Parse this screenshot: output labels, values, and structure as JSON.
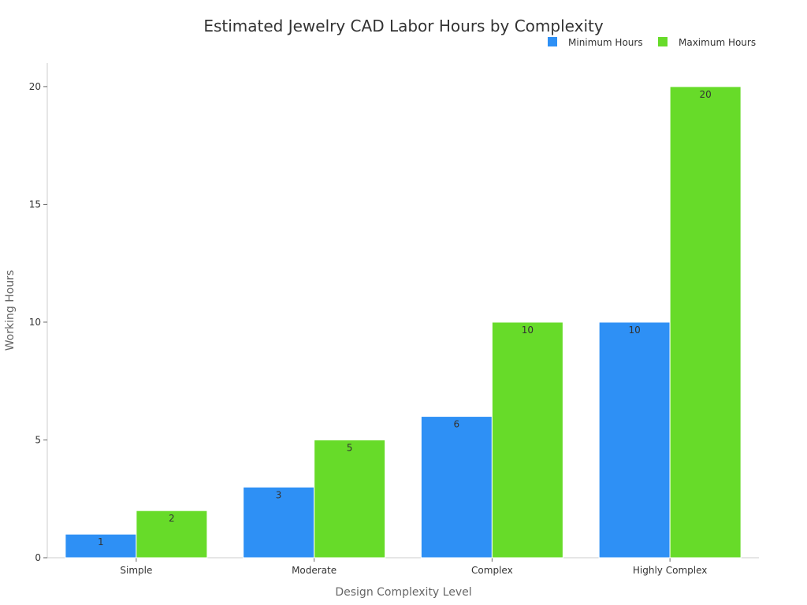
{
  "chart_data": {
    "type": "bar",
    "title": "Estimated Jewelry CAD Labor Hours by Complexity",
    "xlabel": "Design Complexity Level",
    "ylabel": "Working Hours",
    "categories": [
      "Simple",
      "Moderate",
      "Complex",
      "Highly Complex"
    ],
    "series": [
      {
        "name": "Minimum Hours",
        "values": [
          1,
          3,
          6,
          10
        ],
        "color": "#2e90f5"
      },
      {
        "name": "Maximum Hours",
        "values": [
          2,
          5,
          10,
          20
        ],
        "color": "#67db29"
      }
    ],
    "ylim": [
      0,
      21
    ],
    "yticks": [
      0,
      5,
      10,
      15,
      20
    ],
    "grid": false,
    "legend_position": "top-right",
    "data_labels": true
  }
}
